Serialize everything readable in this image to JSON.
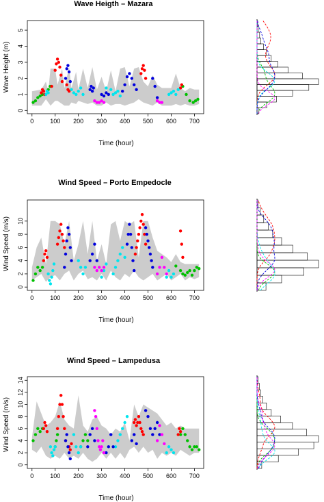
{
  "chart_data": [
    {
      "type": "scatter",
      "title": "Wave Heigth – Mazara",
      "xlabel": "Time (hour)",
      "ylabel": "Wave Height (m)",
      "xlim": [
        -20,
        740
      ],
      "ylim": [
        -0.2,
        5.6
      ],
      "xticks": [
        0,
        100,
        200,
        300,
        400,
        500,
        600,
        700
      ],
      "yticks": [
        0,
        1,
        2,
        3,
        4,
        5
      ],
      "band": {
        "x": [
          0,
          40,
          60,
          70,
          80,
          100,
          110,
          130,
          140,
          160,
          170,
          190,
          200,
          220,
          240,
          260,
          280,
          300,
          320,
          340,
          360,
          380,
          400,
          420,
          440,
          460,
          480,
          500,
          520,
          540,
          560,
          580,
          600,
          620,
          640,
          660,
          680,
          700,
          720
        ],
        "lower": [
          0.3,
          0.3,
          0.7,
          0.5,
          0.3,
          0.6,
          0.6,
          0.4,
          0.3,
          0.3,
          0.5,
          0.4,
          0.6,
          0.5,
          0.4,
          0.5,
          0.3,
          0.3,
          0.5,
          0.3,
          0.4,
          0.4,
          0.3,
          0.4,
          0.5,
          0.7,
          0.5,
          0.4,
          0.3,
          0.5,
          0.3,
          0.3,
          0.3,
          0.4,
          0.3,
          0.4,
          0.3,
          0.3,
          0.4
        ],
        "upper": [
          1.2,
          1.3,
          1.8,
          1.2,
          2.6,
          2.6,
          1.6,
          2.6,
          1.4,
          2.7,
          1.4,
          2.4,
          1.3,
          2.6,
          1.4,
          2.7,
          1.3,
          2.1,
          1.2,
          2.5,
          1.2,
          2.6,
          2.7,
          1.5,
          2.6,
          2.7,
          1.8,
          1.5,
          2.2,
          1.6,
          1.4,
          1.4,
          1.4,
          2.3,
          1.4,
          1.2,
          1.4,
          1.3,
          1.3
        ]
      },
      "series": [
        {
          "color": "#00c000",
          "x": [
            5,
            15,
            25,
            35,
            45,
            70,
            78,
            650,
            665,
            680,
            695,
            705,
            715
          ],
          "y": [
            0.5,
            0.6,
            0.8,
            0.9,
            1.0,
            1.3,
            1.5,
            1.5,
            1.0,
            0.6,
            0.5,
            0.6,
            0.7
          ]
        },
        {
          "color": "#ff0000",
          "x": [
            40,
            45,
            50,
            55,
            85,
            100,
            105,
            110,
            115,
            120,
            125,
            130,
            150,
            155,
            160,
            470,
            475,
            480,
            485,
            490,
            640,
            645
          ],
          "y": [
            1.1,
            1.3,
            1.2,
            1.0,
            1.5,
            2.5,
            2.9,
            3.2,
            3.0,
            2.7,
            2.2,
            1.8,
            1.6,
            1.3,
            1.2,
            2.3,
            2.6,
            2.8,
            2.5,
            2.0,
            1.4,
            1.6
          ]
        },
        {
          "color": "#00e5ee",
          "x": [
            60,
            65,
            70,
            170,
            180,
            190,
            200,
            210,
            220,
            320,
            340,
            350,
            360,
            370,
            380,
            590,
            600,
            610,
            620,
            630
          ],
          "y": [
            1.0,
            1.2,
            1.1,
            1.3,
            1.1,
            1.0,
            1.2,
            1.4,
            1.0,
            1.4,
            1.3,
            1.0,
            1.1,
            1.2,
            0.9,
            1.0,
            1.1,
            1.2,
            1.0,
            1.3
          ]
        },
        {
          "color": "#0000dd",
          "x": [
            145,
            150,
            155,
            160,
            165,
            250,
            255,
            260,
            265,
            300,
            310,
            320,
            330,
            390,
            400,
            410,
            420,
            430,
            440,
            450,
            520,
            530,
            540
          ],
          "y": [
            2.0,
            2.6,
            2.8,
            2.4,
            1.8,
            1.3,
            1.5,
            1.2,
            1.4,
            1.0,
            0.9,
            1.1,
            1.0,
            1.2,
            1.6,
            2.1,
            2.3,
            2.0,
            1.6,
            1.3,
            2.0,
            1.5,
            0.8
          ]
        },
        {
          "color": "#ff00ff",
          "x": [
            270,
            280,
            290,
            300,
            310,
            540,
            550,
            560
          ],
          "y": [
            0.6,
            0.5,
            0.5,
            0.6,
            0.5,
            0.6,
            0.5,
            0.5
          ]
        }
      ],
      "marginal": {
        "type": "histogram",
        "orientation": "horizontal",
        "bins": [
          0.0,
          0.2,
          0.4,
          0.6,
          0.8,
          1.0,
          1.2,
          1.4,
          1.6,
          1.8,
          2.0,
          2.2,
          2.4,
          2.6,
          2.8,
          3.0,
          3.2
        ],
        "counts": [
          3,
          15,
          30,
          55,
          80,
          95,
          70,
          48,
          32,
          22,
          14,
          10,
          6,
          4,
          2,
          1
        ]
      }
    },
    {
      "type": "scatter",
      "title": "Wind Speed – Porto Empedocle",
      "xlabel": "Time (hour)",
      "ylabel": "Wind Speed (m/s)",
      "xlim": [
        -20,
        740
      ],
      "ylim": [
        -0.5,
        13.2
      ],
      "xticks": [
        0,
        100,
        200,
        300,
        400,
        500,
        600,
        700
      ],
      "yticks": [
        0,
        2,
        4,
        6,
        8,
        10
      ],
      "band": {
        "x": [
          0,
          20,
          40,
          60,
          80,
          100,
          120,
          140,
          160,
          180,
          200,
          220,
          240,
          260,
          280,
          300,
          320,
          340,
          360,
          380,
          400,
          420,
          440,
          460,
          480,
          500,
          520,
          540,
          560,
          580,
          600,
          620,
          640,
          660,
          680,
          700,
          720
        ],
        "lower": [
          1.0,
          1.5,
          2.0,
          0.8,
          1.5,
          1.8,
          1.0,
          2.0,
          2.5,
          1.0,
          2.0,
          2.5,
          1.2,
          1.5,
          1.0,
          2.0,
          1.0,
          2.5,
          1.5,
          1.0,
          2.0,
          1.5,
          2.5,
          1.5,
          1.0,
          1.5,
          2.0,
          1.0,
          1.5,
          2.0,
          1.0,
          1.5,
          2.0,
          1.0,
          1.5,
          1.2,
          1.5
        ],
        "upper": [
          3.0,
          6.0,
          7.5,
          3.5,
          10.0,
          10.0,
          9.5,
          6.5,
          10.0,
          4.0,
          6.5,
          10.0,
          5.0,
          10.0,
          4.0,
          6.5,
          3.5,
          9.5,
          10.0,
          7.0,
          10.0,
          9.5,
          10.0,
          4.5,
          10.0,
          10.0,
          7.5,
          5.5,
          5.0,
          4.5,
          3.8,
          5.0,
          3.8,
          3.5,
          3.5,
          3.5,
          3.5
        ]
      },
      "series": [
        {
          "color": "#00c000",
          "x": [
            5,
            15,
            25,
            35,
            45,
            620,
            640,
            650,
            660,
            670,
            680,
            690,
            700,
            710,
            720
          ],
          "y": [
            1.0,
            2.0,
            3.0,
            2.5,
            3.0,
            3.2,
            2.5,
            2.0,
            1.8,
            2.2,
            2.5,
            1.8,
            2.5,
            3.0,
            2.8
          ]
        },
        {
          "color": "#ff0000",
          "x": [
            50,
            55,
            60,
            65,
            110,
            115,
            120,
            125,
            130,
            135,
            140,
            445,
            450,
            455,
            460,
            465,
            470,
            475,
            480,
            485,
            490,
            640,
            645,
            650
          ],
          "y": [
            4.0,
            5.0,
            5.5,
            4.5,
            6.5,
            7.5,
            8.5,
            9.5,
            8.0,
            7.0,
            6.0,
            5.0,
            6.0,
            7.0,
            8.0,
            9.0,
            10.0,
            11.0,
            9.5,
            8.0,
            6.5,
            8.5,
            6.5,
            4.5
          ]
        },
        {
          "color": "#00e5ee",
          "x": [
            70,
            75,
            80,
            85,
            90,
            95,
            200,
            210,
            220,
            230,
            300,
            310,
            320,
            350,
            360,
            370,
            380,
            390,
            400,
            580,
            590,
            600,
            610
          ],
          "y": [
            2.0,
            1.0,
            0.5,
            1.5,
            2.5,
            3.5,
            4.0,
            3.0,
            2.0,
            3.0,
            1.5,
            2.5,
            3.5,
            2.0,
            3.0,
            4.0,
            5.0,
            6.0,
            4.5,
            1.5,
            2.5,
            1.5,
            2.0
          ]
        },
        {
          "color": "#0000dd",
          "x": [
            140,
            145,
            150,
            155,
            160,
            165,
            170,
            250,
            260,
            270,
            280,
            410,
            415,
            420,
            425,
            430,
            435,
            440,
            490,
            495,
            500,
            505,
            510,
            515,
            520
          ],
          "y": [
            3.0,
            5.0,
            7.0,
            9.0,
            8.0,
            6.0,
            4.0,
            4.0,
            5.0,
            6.5,
            4.0,
            6.5,
            8.0,
            9.5,
            8.0,
            6.0,
            4.0,
            2.5,
            9.0,
            8.0,
            7.0,
            6.0,
            5.0,
            4.0,
            3.0
          ]
        },
        {
          "color": "#ff00ff",
          "x": [
            270,
            280,
            290,
            300,
            310,
            540,
            550,
            560,
            570,
            580
          ],
          "y": [
            3.0,
            2.5,
            3.0,
            2.5,
            3.0,
            2.0,
            3.0,
            4.5,
            3.0,
            2.0
          ]
        }
      ],
      "marginal": {
        "type": "histogram",
        "orientation": "horizontal",
        "bins": [
          0,
          1,
          2,
          3,
          4,
          5,
          6,
          7,
          8,
          9,
          10,
          11,
          12
        ],
        "counts": [
          8,
          22,
          42,
          55,
          45,
          32,
          22,
          14,
          10,
          6,
          3,
          1
        ]
      }
    },
    {
      "type": "scatter",
      "title": "Wind Speed – Lampedusa",
      "xlabel": "Time (hour)",
      "ylabel": "Wind Speed (m/s)",
      "xlim": [
        -20,
        740
      ],
      "ylim": [
        -0.6,
        14.6
      ],
      "xticks": [
        0,
        100,
        200,
        300,
        400,
        500,
        600,
        700
      ],
      "yticks": [
        0,
        2,
        4,
        6,
        8,
        10,
        12,
        14
      ],
      "band": {
        "x": [
          0,
          20,
          40,
          60,
          80,
          100,
          120,
          140,
          160,
          180,
          200,
          220,
          240,
          260,
          280,
          300,
          320,
          340,
          360,
          380,
          400,
          420,
          440,
          460,
          480,
          500,
          520,
          540,
          560,
          580,
          600,
          620,
          640,
          660,
          680,
          700,
          720
        ],
        "lower": [
          2.5,
          2.0,
          3.0,
          1.5,
          1.0,
          1.5,
          1.0,
          2.0,
          1.0,
          1.5,
          1.0,
          2.0,
          1.0,
          0.5,
          1.0,
          2.0,
          1.0,
          2.0,
          1.0,
          2.0,
          1.0,
          2.5,
          3.0,
          2.0,
          3.0,
          2.0,
          2.5,
          1.0,
          2.0,
          1.5,
          2.0,
          1.5,
          2.5,
          2.0,
          1.5,
          2.0,
          2.0
        ],
        "upper": [
          4.5,
          10.5,
          8.5,
          6.5,
          7.0,
          8.0,
          10.5,
          7.5,
          6.5,
          6.0,
          11.5,
          6.5,
          5.5,
          7.5,
          8.0,
          6.5,
          6.0,
          5.0,
          6.0,
          5.5,
          7.0,
          4.0,
          10.0,
          8.0,
          10.0,
          9.5,
          9.0,
          8.5,
          7.5,
          6.5,
          7.0,
          6.0,
          6.5,
          6.0,
          6.0,
          6.0,
          6.0
        ]
      },
      "series": [
        {
          "color": "#00c000",
          "x": [
            5,
            15,
            25,
            35,
            45,
            100,
            105,
            110,
            210,
            220,
            230,
            240,
            640,
            650,
            660,
            670,
            680,
            690,
            700,
            710,
            720
          ],
          "y": [
            4.0,
            5.0,
            6.0,
            5.5,
            6.0,
            3.0,
            4.0,
            5.0,
            3.0,
            4.0,
            5.0,
            4.0,
            5.0,
            6.0,
            5.0,
            4.0,
            3.0,
            2.5,
            3.0,
            3.0,
            2.5
          ]
        },
        {
          "color": "#ff0000",
          "x": [
            50,
            55,
            60,
            65,
            110,
            115,
            120,
            125,
            130,
            135,
            140,
            145,
            160,
            165,
            170,
            440,
            445,
            450,
            455,
            460,
            465,
            470,
            475,
            480,
            630,
            635,
            640
          ],
          "y": [
            6.0,
            7.0,
            6.5,
            5.5,
            6.0,
            8.0,
            10.0,
            11.5,
            10.0,
            8.0,
            6.0,
            4.0,
            3.0,
            2.5,
            3.5,
            7.0,
            7.5,
            6.5,
            7.0,
            8.0,
            7.0,
            6.0,
            5.5,
            5.0,
            5.0,
            6.0,
            5.5
          ]
        },
        {
          "color": "#00e5ee",
          "x": [
            80,
            85,
            90,
            95,
            100,
            180,
            190,
            200,
            210,
            360,
            370,
            380,
            390,
            400,
            410,
            580,
            590,
            600,
            610
          ],
          "y": [
            3.0,
            2.0,
            1.5,
            2.5,
            3.0,
            5.0,
            3.0,
            2.0,
            3.0,
            3.0,
            4.0,
            5.0,
            6.0,
            7.0,
            8.0,
            2.0,
            3.0,
            2.5,
            2.0
          ]
        },
        {
          "color": "#0000dd",
          "x": [
            145,
            150,
            155,
            160,
            165,
            240,
            250,
            260,
            270,
            320,
            330,
            340,
            350,
            430,
            440,
            450,
            490,
            500,
            510,
            520,
            530,
            540,
            550
          ],
          "y": [
            4.0,
            5.0,
            3.0,
            2.0,
            1.0,
            3.0,
            5.0,
            6.0,
            4.0,
            2.0,
            3.0,
            5.0,
            3.0,
            4.0,
            5.0,
            3.5,
            9.0,
            8.0,
            6.0,
            5.0,
            6.0,
            7.0,
            5.0
          ]
        },
        {
          "color": "#ff00ff",
          "x": [
            270,
            275,
            280,
            285,
            290,
            295,
            300,
            305,
            310,
            540,
            550,
            560,
            570
          ],
          "y": [
            9.0,
            8.0,
            6.0,
            4.0,
            3.0,
            2.5,
            3.0,
            4.0,
            2.0,
            4.0,
            6.5,
            5.0,
            3.5
          ]
        }
      ],
      "marginal": {
        "type": "histogram",
        "orientation": "horizontal",
        "bins": [
          0,
          1,
          2,
          3,
          4,
          5,
          6,
          7,
          8,
          9,
          10,
          11,
          12,
          13,
          14
        ],
        "counts": [
          4,
          18,
          35,
          48,
          52,
          42,
          30,
          20,
          12,
          8,
          5,
          3,
          2,
          1
        ]
      }
    }
  ]
}
